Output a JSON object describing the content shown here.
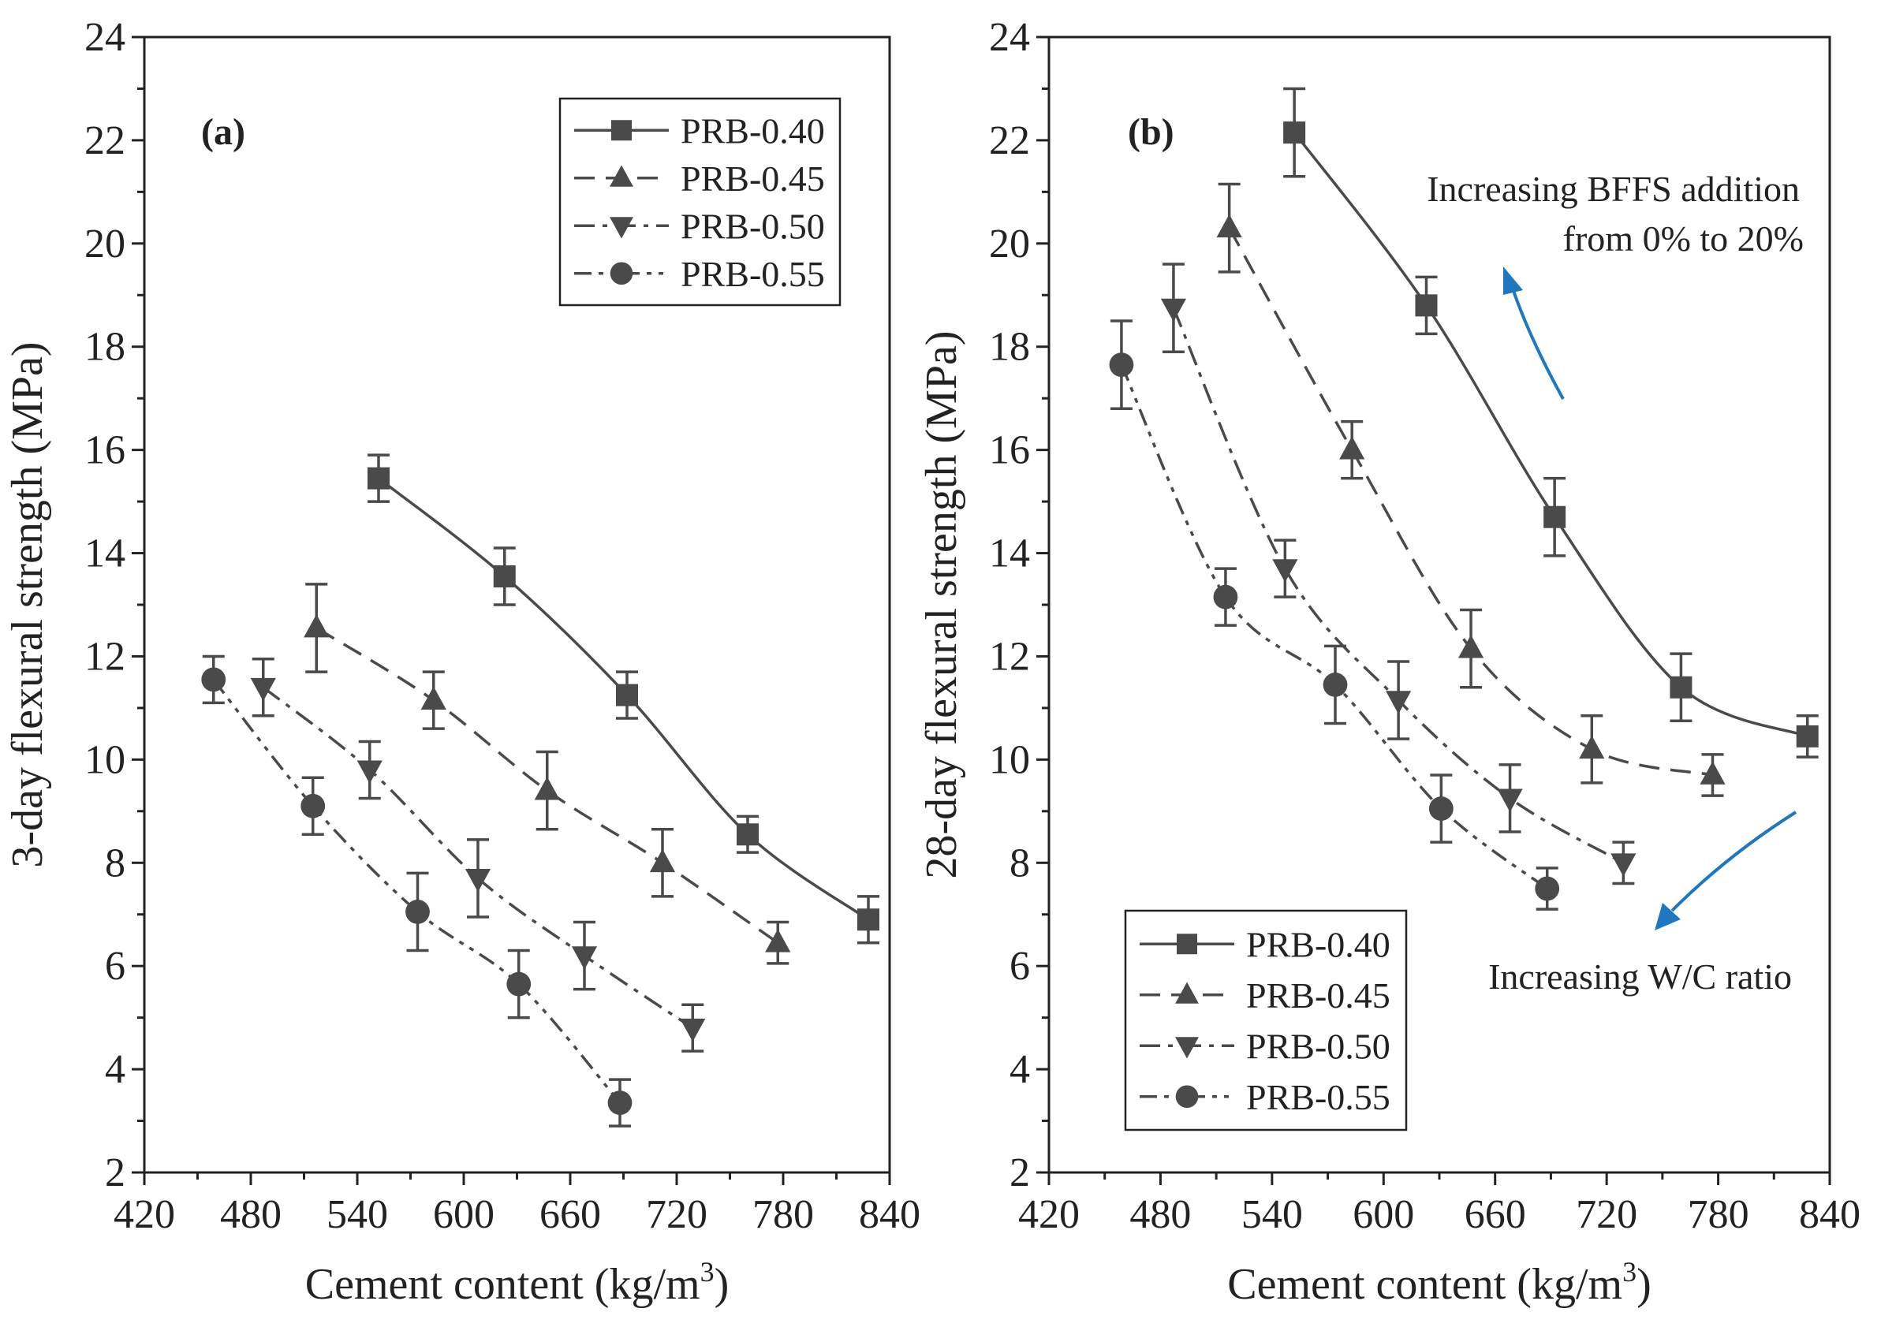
{
  "chart_data": [
    {
      "type": "line",
      "panel_label": "(a)",
      "xlabel": "Cement content (kg/m",
      "xlabel_sup": "3",
      "xlabel_end": ")",
      "ylabel": "3-day flexural strength (MPa)",
      "xlim": [
        420,
        840
      ],
      "ylim": [
        2,
        24
      ],
      "xticks": [
        "420",
        "480",
        "540",
        "600",
        "660",
        "720",
        "780",
        "840"
      ],
      "yticks": [
        "2",
        "4",
        "6",
        "8",
        "10",
        "12",
        "14",
        "16",
        "18",
        "20",
        "22",
        "24"
      ],
      "legend_position": "top-right",
      "series": [
        {
          "name": "PRB-0.40",
          "marker": "square",
          "line": "solid",
          "x": [
            552,
            623,
            692,
            760,
            828
          ],
          "y": [
            15.45,
            13.55,
            11.25,
            8.55,
            6.9
          ],
          "err": [
            0.45,
            0.55,
            0.45,
            0.35,
            0.45
          ]
        },
        {
          "name": "PRB-0.45",
          "marker": "triangle-up",
          "line": "dashed",
          "x": [
            517,
            583,
            647,
            712,
            777
          ],
          "y": [
            12.55,
            11.15,
            9.4,
            8.0,
            6.45
          ],
          "err": [
            0.85,
            0.55,
            0.75,
            0.65,
            0.4
          ]
        },
        {
          "name": "PRB-0.50",
          "marker": "triangle-down",
          "line": "dashdot",
          "x": [
            487,
            547,
            608,
            668,
            729
          ],
          "y": [
            11.4,
            9.8,
            7.7,
            6.2,
            4.8
          ],
          "err": [
            0.55,
            0.55,
            0.75,
            0.65,
            0.45
          ]
        },
        {
          "name": "PRB-0.55",
          "marker": "circle",
          "line": "dashdotdot",
          "x": [
            459,
            515,
            574,
            631,
            688
          ],
          "y": [
            11.55,
            9.1,
            7.05,
            5.65,
            3.35
          ],
          "err": [
            0.45,
            0.55,
            0.75,
            0.65,
            0.45
          ]
        }
      ]
    },
    {
      "type": "line",
      "panel_label": "(b)",
      "xlabel": "Cement content (kg/m",
      "xlabel_sup": "3",
      "xlabel_end": ")",
      "ylabel": "28-day flexural strength (MPa)",
      "xlim": [
        420,
        840
      ],
      "ylim": [
        2,
        24
      ],
      "xticks": [
        "420",
        "480",
        "540",
        "600",
        "660",
        "720",
        "780",
        "840"
      ],
      "yticks": [
        "2",
        "4",
        "6",
        "8",
        "10",
        "12",
        "14",
        "16",
        "18",
        "20",
        "22",
        "24"
      ],
      "legend_position": "bottom-left",
      "annotations": [
        "Increasing BFFS addition",
        "from 0% to 20%",
        "Increasing W/C ratio"
      ],
      "annotation_color": "#1f77c0",
      "series": [
        {
          "name": "PRB-0.40",
          "marker": "square",
          "line": "solid",
          "x": [
            552,
            623,
            692,
            760,
            828
          ],
          "y": [
            22.15,
            18.8,
            14.7,
            11.4,
            10.45
          ],
          "err": [
            0.85,
            0.55,
            0.75,
            0.65,
            0.4
          ]
        },
        {
          "name": "PRB-0.45",
          "marker": "triangle-up",
          "line": "dashed",
          "x": [
            517,
            583,
            647,
            712,
            777
          ],
          "y": [
            20.3,
            16.0,
            12.15,
            10.2,
            9.7
          ],
          "err": [
            0.85,
            0.55,
            0.75,
            0.65,
            0.4
          ]
        },
        {
          "name": "PRB-0.50",
          "marker": "triangle-down",
          "line": "dashdot",
          "x": [
            487,
            547,
            608,
            668,
            729
          ],
          "y": [
            18.75,
            13.7,
            11.15,
            9.25,
            8.0
          ],
          "err": [
            0.85,
            0.55,
            0.75,
            0.65,
            0.4
          ]
        },
        {
          "name": "PRB-0.55",
          "marker": "circle",
          "line": "dashdotdot",
          "x": [
            459,
            515,
            574,
            631,
            688
          ],
          "y": [
            17.65,
            13.15,
            11.45,
            9.05,
            7.5
          ],
          "err": [
            0.85,
            0.55,
            0.75,
            0.65,
            0.4
          ]
        }
      ]
    }
  ],
  "colors": {
    "series": "#4a4a4a",
    "axis": "#222222",
    "annotation": "#1f77c0"
  }
}
